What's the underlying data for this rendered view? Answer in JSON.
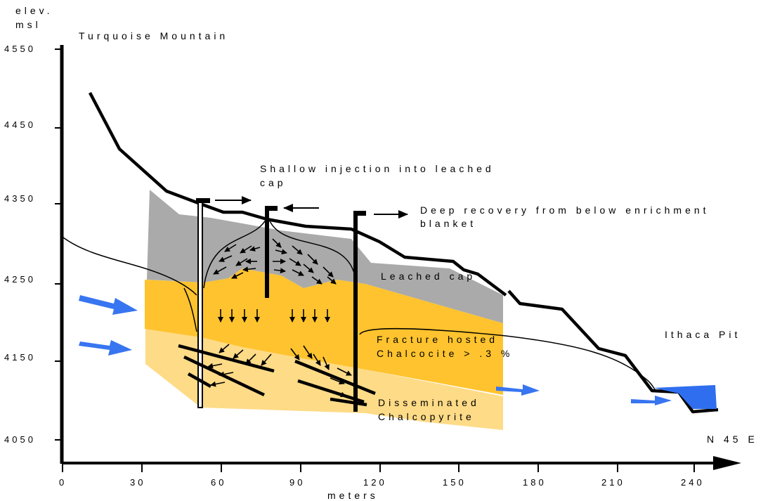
{
  "colors": {
    "leached_cap": "#aaaaaa",
    "fracture_zone": "#fec32e",
    "disseminated_zone": "#fedb87",
    "water_arrows": "#3875f0",
    "pit_water": "#2f6fef"
  },
  "y_axis": {
    "label_line1": "elev.",
    "label_line2": "msl",
    "ticks": [
      "4550",
      "4450",
      "4350",
      "4250",
      "4150",
      "4050"
    ]
  },
  "x_axis": {
    "label": "meters",
    "ticks": [
      "0",
      "30",
      "60",
      "90",
      "120",
      "150",
      "180",
      "210",
      "240"
    ],
    "direction": "N 45 E"
  },
  "labels": {
    "turquoise_mountain": "Turquoise Mountain",
    "shallow_injection_line1": "Shallow injection into leached",
    "shallow_injection_line2": "cap",
    "deep_recovery_line1": "Deep recovery from below enrichment",
    "deep_recovery_line2": "blanket",
    "leached_cap": "Leached cap",
    "fracture_line1": "Fracture hosted",
    "fracture_line2": "Chalcocite > .3 %",
    "disseminated_line1": "Disseminated",
    "disseminated_line2": "Chalcopyrite",
    "ithaca_pit": "Ithaca Pit"
  }
}
